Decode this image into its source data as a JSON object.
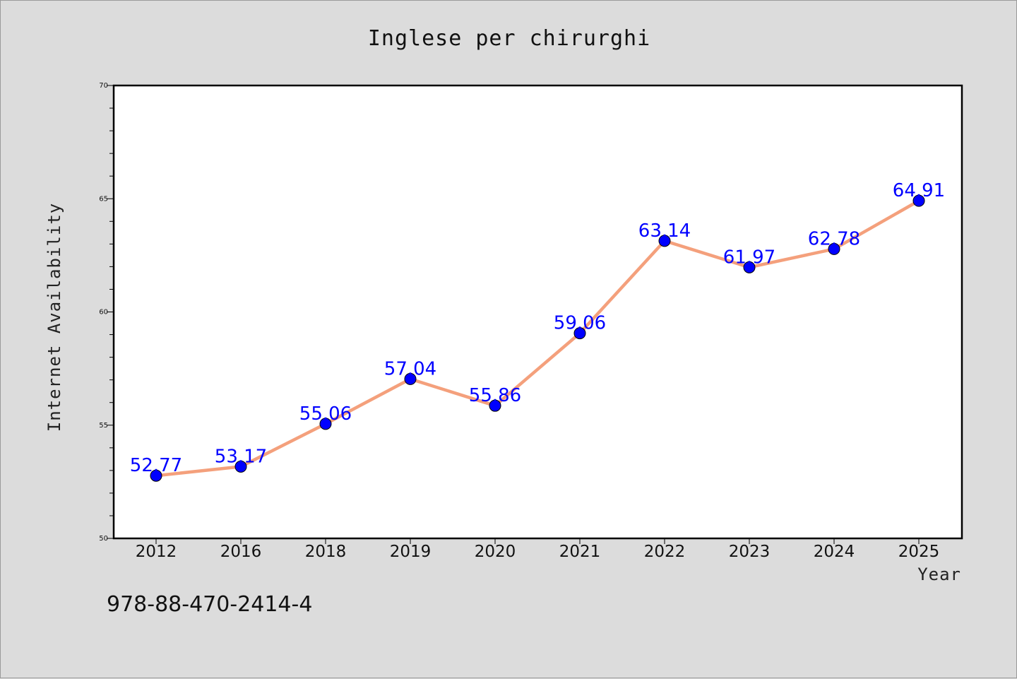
{
  "chart_data": {
    "type": "line",
    "title": "Inglese per chirurghi",
    "xlabel": "Year",
    "ylabel": "Internet Availability",
    "categories": [
      "2012",
      "2016",
      "2018",
      "2019",
      "2020",
      "2021",
      "2022",
      "2023",
      "2024",
      "2025"
    ],
    "values": [
      52.77,
      53.17,
      55.06,
      57.04,
      55.86,
      59.06,
      63.14,
      61.97,
      62.78,
      64.91
    ],
    "ylim": [
      50,
      70
    ],
    "yticks": [
      50,
      55,
      60,
      65,
      70
    ],
    "y_minor_step": 1,
    "grid": false,
    "legend": "none",
    "line_color": "#f4a07c",
    "marker_color": "#0000ff",
    "label_color": "#0000ff"
  },
  "footer": {
    "isbn": "978-88-470-2414-4"
  }
}
